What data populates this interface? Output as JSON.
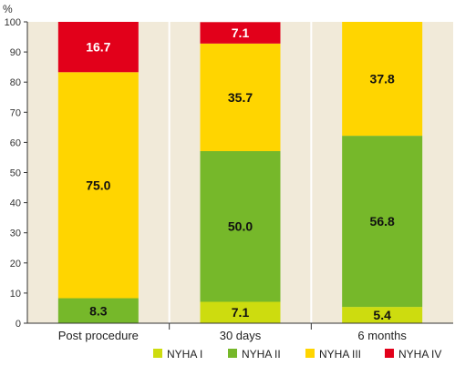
{
  "chart_data": {
    "type": "bar",
    "stacked": true,
    "ylabel": "%",
    "ylim": [
      0,
      100
    ],
    "yticks": [
      0,
      10,
      20,
      30,
      40,
      50,
      60,
      70,
      80,
      90,
      100
    ],
    "categories": [
      "Post procedure",
      "30 days",
      "6 months"
    ],
    "series": [
      {
        "name": "NYHA I",
        "color": "#cddc0f",
        "values": [
          0,
          7.1,
          5.4
        ]
      },
      {
        "name": "NYHA II",
        "color": "#76b82a",
        "values": [
          8.3,
          50.0,
          56.8
        ]
      },
      {
        "name": "NYHA III",
        "color": "#ffd500",
        "values": [
          75.0,
          35.7,
          37.8
        ]
      },
      {
        "name": "NYHA IV",
        "color": "#e2001a",
        "values": [
          16.7,
          7.1,
          0
        ]
      }
    ],
    "data_labels": [
      [
        "",
        "7.1",
        "5.4"
      ],
      [
        "8.3",
        "50.0",
        "56.8"
      ],
      [
        "75.0",
        "35.7",
        "37.8"
      ],
      [
        "16.7",
        "7.1",
        ""
      ]
    ],
    "plot_background": "#f1ead9",
    "legend_position": "bottom-right",
    "grid": false
  }
}
